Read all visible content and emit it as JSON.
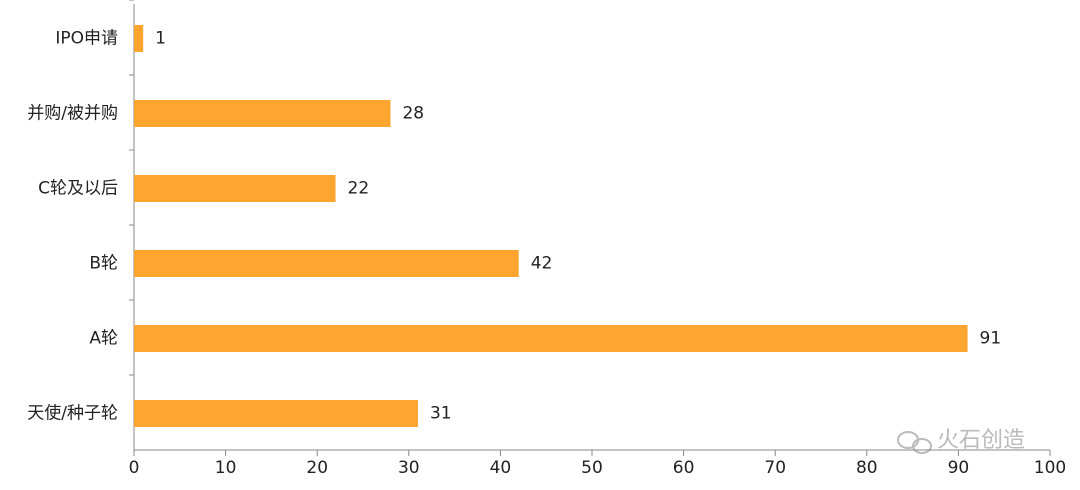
{
  "chart_data": {
    "type": "hbar",
    "categories": [
      "IPO申请",
      "并购/被并购",
      "C轮及以后",
      "B轮",
      "A轮",
      "天使/种子轮"
    ],
    "values": [
      1,
      28,
      22,
      42,
      91,
      31
    ],
    "color": "#ffa42e",
    "xlim": [
      0,
      100
    ],
    "xticks": [
      0,
      10,
      20,
      30,
      40,
      50,
      60,
      70,
      80,
      90,
      100
    ],
    "grid": false
  },
  "watermark": "火石创造"
}
